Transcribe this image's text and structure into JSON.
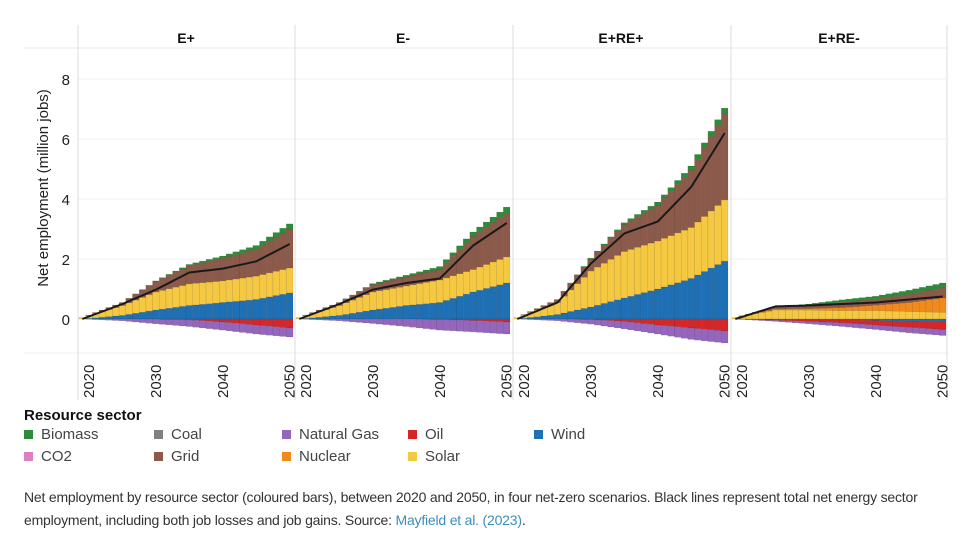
{
  "chart_data": {
    "type": "bar",
    "stacked": true,
    "facet_labels": [
      "E+",
      "E-",
      "E+RE+",
      "E+RE-"
    ],
    "ylabel": "Net employment (million jobs)",
    "xlabel": "",
    "ylim": [
      -1.15,
      9.2
    ],
    "yticks": [
      0,
      2,
      4,
      6,
      8
    ],
    "xticks": [
      2020,
      2030,
      2040,
      2050
    ],
    "years": [
      2019,
      2020,
      2021,
      2022,
      2023,
      2024,
      2025,
      2026,
      2027,
      2028,
      2029,
      2030,
      2031,
      2032,
      2033,
      2034,
      2035,
      2036,
      2037,
      2038,
      2039,
      2040,
      2041,
      2042,
      2043,
      2044,
      2045,
      2046,
      2047,
      2048,
      2049,
      2050
    ],
    "grid": true,
    "legend": {
      "title": "Resource sector",
      "position": "bottom-left",
      "entries": [
        {
          "name": "Biomass",
          "color": "#2e8b3a"
        },
        {
          "name": "CO2",
          "color": "#e07fbf"
        },
        {
          "name": "Coal",
          "color": "#808080"
        },
        {
          "name": "Grid",
          "color": "#8c5a4a"
        },
        {
          "name": "Natural Gas",
          "color": "#9467bd"
        },
        {
          "name": "Nuclear",
          "color": "#f08a1c"
        },
        {
          "name": "Oil",
          "color": "#d62728"
        },
        {
          "name": "Solar",
          "color": "#f5c842"
        },
        {
          "name": "Wind",
          "color": "#1f6fb4"
        }
      ]
    },
    "panels": [
      {
        "name": "E+",
        "keyframes_years": [
          2019,
          2025,
          2030,
          2035,
          2040,
          2045,
          2050
        ],
        "series": [
          {
            "name": "Wind",
            "values": [
              0.0,
              0.12,
              0.3,
              0.45,
              0.55,
              0.65,
              0.87
            ]
          },
          {
            "name": "Solar",
            "values": [
              0.05,
              0.33,
              0.6,
              0.72,
              0.72,
              0.78,
              0.83
            ]
          },
          {
            "name": "Nuclear",
            "values": [
              0,
              0,
              0,
              0,
              0,
              0,
              0
            ]
          },
          {
            "name": "Grid",
            "values": [
              0.0,
              0.1,
              0.35,
              0.6,
              0.75,
              0.9,
              1.3
            ]
          },
          {
            "name": "Biomass",
            "values": [
              0.0,
              0.0,
              0.02,
              0.05,
              0.08,
              0.12,
              0.17
            ]
          },
          {
            "name": "Oil",
            "values": [
              0.0,
              0.0,
              -0.01,
              -0.03,
              -0.1,
              -0.2,
              -0.3
            ]
          },
          {
            "name": "Natural Gas",
            "values": [
              0.0,
              -0.06,
              -0.15,
              -0.22,
              -0.27,
              -0.3,
              -0.3
            ]
          }
        ],
        "total": [
          0.0,
          0.5,
          0.98,
          1.55,
          1.68,
          1.92,
          2.5
        ]
      },
      {
        "name": "E-",
        "keyframes_years": [
          2019,
          2025,
          2030,
          2035,
          2040,
          2045,
          2050
        ],
        "series": [
          {
            "name": "Wind",
            "values": [
              0.0,
              0.12,
              0.3,
              0.45,
              0.55,
              0.9,
              1.2
            ]
          },
          {
            "name": "Solar",
            "values": [
              0.05,
              0.33,
              0.6,
              0.65,
              0.75,
              0.75,
              0.87
            ]
          },
          {
            "name": "Nuclear",
            "values": [
              0,
              0,
              0,
              0,
              0,
              0,
              0
            ]
          },
          {
            "name": "Grid",
            "values": [
              0.0,
              0.1,
              0.25,
              0.3,
              0.35,
              1.1,
              1.46
            ]
          },
          {
            "name": "Biomass",
            "values": [
              0.0,
              0.0,
              0.03,
              0.06,
              0.1,
              0.15,
              0.2
            ]
          },
          {
            "name": "Oil",
            "values": [
              0.0,
              0.0,
              0.0,
              0.0,
              -0.02,
              -0.05,
              -0.1
            ]
          },
          {
            "name": "Natural Gas",
            "values": [
              0.0,
              -0.06,
              -0.15,
              -0.25,
              -0.35,
              -0.38,
              -0.4
            ]
          }
        ],
        "total": [
          0.0,
          0.5,
          0.98,
          1.2,
          1.35,
          2.45,
          3.2
        ]
      },
      {
        "name": "E+RE+",
        "keyframes_years": [
          2019,
          2025,
          2030,
          2035,
          2040,
          2045,
          2050
        ],
        "series": [
          {
            "name": "Wind",
            "values": [
              0.0,
              0.15,
              0.4,
              0.7,
              1.0,
              1.35,
              1.93
            ]
          },
          {
            "name": "Solar",
            "values": [
              0.05,
              0.4,
              1.2,
              1.55,
              1.6,
              1.7,
              2.04
            ]
          },
          {
            "name": "Nuclear",
            "values": [
              0,
              0,
              0,
              0,
              0,
              0,
              0
            ]
          },
          {
            "name": "Grid",
            "values": [
              0.0,
              0.1,
              0.4,
              0.9,
              1.2,
              1.9,
              2.86
            ]
          },
          {
            "name": "Biomass",
            "values": [
              0.0,
              0.0,
              0.03,
              0.06,
              0.1,
              0.15,
              0.2
            ]
          },
          {
            "name": "Oil",
            "values": [
              0.0,
              0.0,
              -0.02,
              -0.08,
              -0.2,
              -0.3,
              -0.4
            ]
          },
          {
            "name": "Natural Gas",
            "values": [
              0.0,
              -0.06,
              -0.15,
              -0.25,
              -0.3,
              -0.38,
              -0.4
            ]
          }
        ],
        "total": [
          0.0,
          0.55,
          1.85,
          2.85,
          3.25,
          4.4,
          6.2
        ]
      },
      {
        "name": "E+RE-",
        "keyframes_years": [
          2019,
          2025,
          2030,
          2035,
          2040,
          2045,
          2050
        ],
        "series": [
          {
            "name": "Wind",
            "values": [
              0.0,
              -0.02,
              -0.03,
              -0.03,
              -0.05,
              -0.08,
              -0.1
            ]
          },
          {
            "name": "Solar",
            "values": [
              0.05,
              0.3,
              0.3,
              0.28,
              0.28,
              0.25,
              0.22
            ]
          },
          {
            "name": "Nuclear",
            "values": [
              0.0,
              0.03,
              0.05,
              0.1,
              0.18,
              0.3,
              0.48
            ]
          },
          {
            "name": "Grid",
            "values": [
              0.0,
              0.05,
              0.1,
              0.18,
              0.2,
              0.28,
              0.33
            ]
          },
          {
            "name": "Biomass",
            "values": [
              0.0,
              0.02,
              0.05,
              0.08,
              0.1,
              0.13,
              0.17
            ]
          },
          {
            "name": "Oil",
            "values": [
              0.0,
              -0.02,
              -0.05,
              -0.1,
              -0.15,
              -0.2,
              -0.25
            ]
          },
          {
            "name": "Natural Gas",
            "values": [
              0.0,
              -0.04,
              -0.08,
              -0.12,
              -0.15,
              -0.18,
              -0.2
            ]
          }
        ],
        "total": [
          0.0,
          0.42,
          0.45,
          0.5,
          0.55,
          0.65,
          0.75
        ]
      }
    ]
  },
  "legend_title": "Resource sector",
  "caption": {
    "text": "Net employment by resource sector (coloured bars), between 2020 and 2050, in four net-zero scenarios. Black lines represent total net energy sector employment, including both job losses and job gains. Source: ",
    "link_text": "Mayfield et al. (2023)",
    "end": "."
  }
}
